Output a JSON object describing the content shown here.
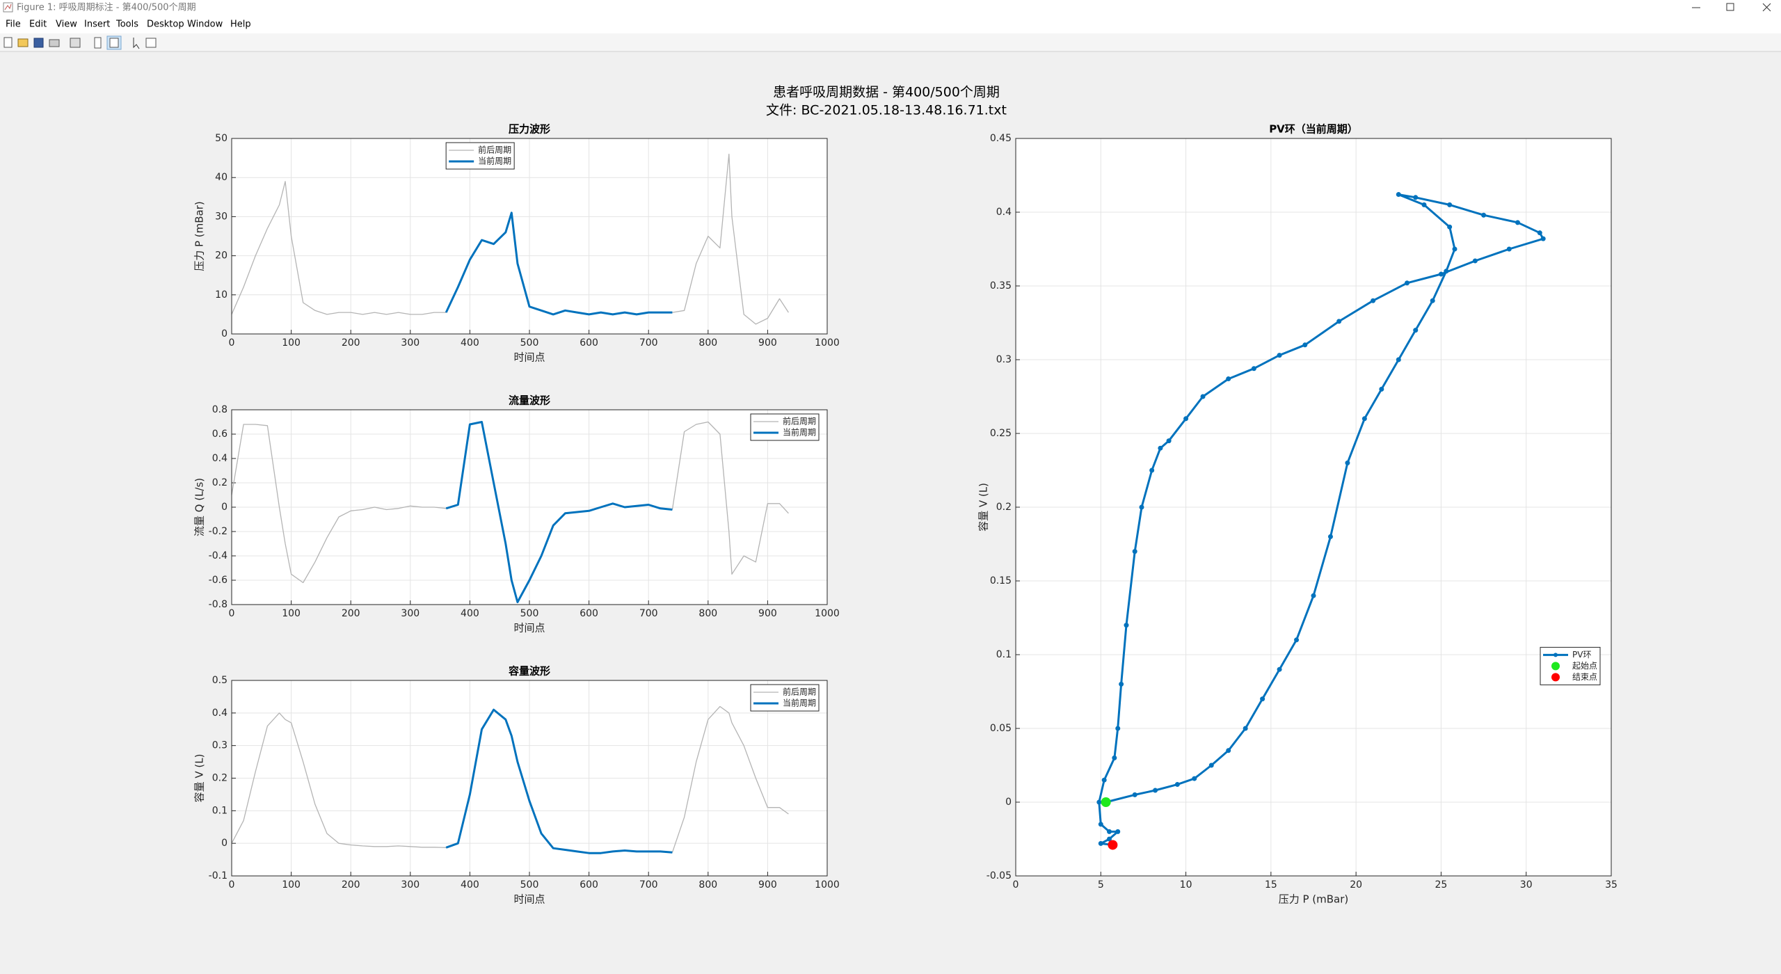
{
  "window": {
    "title": "Figure 1: 呼吸周期标注 - 第400/500个周期",
    "menu": [
      "File",
      "Edit",
      "View",
      "Insert",
      "Tools",
      "Desktop",
      "Window",
      "Help"
    ]
  },
  "figure_title": [
    "患者呼吸周期数据 - 第400/500个周期",
    "文件: BC-2021.05.18-13.48.16.71.txt"
  ],
  "chart_data": [
    {
      "type": "line",
      "title": "压力波形",
      "xlabel": "时间点",
      "ylabel": "压力 P (mBar)",
      "x": [
        0,
        20,
        40,
        60,
        80,
        90,
        100,
        120,
        140,
        160,
        180,
        200,
        220,
        240,
        260,
        280,
        300,
        320,
        340,
        360,
        380,
        400,
        420,
        440,
        460,
        470,
        480,
        500,
        520,
        540,
        560,
        580,
        600,
        620,
        640,
        660,
        680,
        700,
        720,
        740,
        760,
        780,
        800,
        820,
        835,
        840,
        860,
        880,
        900,
        920,
        935
      ],
      "series": [
        {
          "name": "前后周期",
          "color": "#b4b4b4",
          "linewidth": "thin",
          "values": [
            5,
            12,
            20,
            27,
            33,
            39,
            25,
            8,
            6,
            5,
            5.5,
            5.5,
            5,
            5.5,
            5,
            5.5,
            5,
            5,
            5.5,
            5.5,
            null,
            null,
            null,
            null,
            null,
            null,
            null,
            null,
            null,
            null,
            null,
            null,
            null,
            null,
            null,
            null,
            null,
            null,
            null,
            5.5,
            6,
            18,
            25,
            22,
            46,
            30,
            5,
            2.5,
            4,
            9,
            5.5
          ]
        },
        {
          "name": "当前周期",
          "color": "#0072bd",
          "linewidth": "thick",
          "values": [
            null,
            null,
            null,
            null,
            null,
            null,
            null,
            null,
            null,
            null,
            null,
            null,
            null,
            null,
            null,
            null,
            null,
            null,
            null,
            5.5,
            12,
            19,
            24,
            23,
            26,
            31,
            18,
            7,
            6,
            5,
            6,
            5.5,
            5,
            5.5,
            5,
            5.5,
            5,
            5.5,
            5.5,
            5.5,
            null,
            null,
            null,
            null,
            null,
            null,
            null,
            null,
            null,
            null,
            null
          ]
        }
      ],
      "xlim": [
        0,
        1000
      ],
      "xticks": [
        0,
        100,
        200,
        300,
        400,
        500,
        600,
        700,
        800,
        900,
        1000
      ],
      "ylim": [
        0,
        50
      ],
      "yticks": [
        0,
        10,
        20,
        30,
        40,
        50
      ],
      "grid": true,
      "legend": "upper center"
    },
    {
      "type": "line",
      "title": "流量波形",
      "xlabel": "时间点",
      "ylabel": "流量 Q (L/s)",
      "x": [
        0,
        20,
        40,
        60,
        80,
        90,
        100,
        120,
        140,
        160,
        180,
        200,
        220,
        240,
        260,
        280,
        300,
        320,
        340,
        360,
        380,
        400,
        420,
        440,
        460,
        470,
        480,
        500,
        520,
        540,
        560,
        580,
        600,
        620,
        640,
        660,
        680,
        700,
        720,
        740,
        760,
        780,
        800,
        820,
        835,
        840,
        860,
        880,
        900,
        920,
        935
      ],
      "series": [
        {
          "name": "前后周期",
          "color": "#b4b4b4",
          "linewidth": "thin",
          "values": [
            0.1,
            0.68,
            0.68,
            0.67,
            0,
            -0.3,
            -0.55,
            -0.62,
            -0.45,
            -0.25,
            -0.08,
            -0.03,
            -0.02,
            0,
            -0.02,
            -0.01,
            0.01,
            0,
            0,
            -0.01,
            null,
            null,
            null,
            null,
            null,
            null,
            null,
            null,
            null,
            null,
            null,
            null,
            null,
            null,
            null,
            null,
            null,
            null,
            null,
            -0.02,
            0.62,
            0.68,
            0.7,
            0.6,
            -0.2,
            -0.55,
            -0.4,
            -0.45,
            0.03,
            0.03,
            -0.05
          ]
        },
        {
          "name": "当前周期",
          "color": "#0072bd",
          "linewidth": "thick",
          "values": [
            null,
            null,
            null,
            null,
            null,
            null,
            null,
            null,
            null,
            null,
            null,
            null,
            null,
            null,
            null,
            null,
            null,
            null,
            null,
            -0.01,
            0.02,
            0.68,
            0.7,
            0.2,
            -0.3,
            -0.6,
            -0.78,
            -0.6,
            -0.4,
            -0.15,
            -0.05,
            -0.04,
            -0.03,
            0,
            0.03,
            0,
            0.01,
            0.02,
            -0.01,
            -0.02,
            null,
            null,
            null,
            null,
            null,
            null,
            null,
            null,
            null,
            null,
            null
          ]
        }
      ],
      "xlim": [
        0,
        1000
      ],
      "xticks": [
        0,
        100,
        200,
        300,
        400,
        500,
        600,
        700,
        800,
        900,
        1000
      ],
      "ylim": [
        -0.8,
        0.8
      ],
      "yticks": [
        -0.8,
        -0.6,
        -0.4,
        -0.2,
        0,
        0.2,
        0.4,
        0.6,
        0.8
      ],
      "grid": true,
      "legend": "upper right"
    },
    {
      "type": "line",
      "title": "容量波形",
      "xlabel": "时间点",
      "ylabel": "容量 V (L)",
      "x": [
        0,
        20,
        40,
        60,
        80,
        90,
        100,
        120,
        140,
        160,
        180,
        200,
        220,
        240,
        260,
        280,
        300,
        320,
        340,
        360,
        380,
        400,
        420,
        440,
        460,
        470,
        480,
        500,
        520,
        540,
        560,
        580,
        600,
        620,
        640,
        660,
        680,
        700,
        720,
        740,
        760,
        780,
        800,
        820,
        835,
        840,
        860,
        880,
        900,
        920,
        935
      ],
      "series": [
        {
          "name": "前后周期",
          "color": "#b4b4b4",
          "linewidth": "thin",
          "values": [
            0,
            0.07,
            0.22,
            0.36,
            0.4,
            0.38,
            0.37,
            0.25,
            0.12,
            0.03,
            0,
            -0.005,
            -0.008,
            -0.01,
            -0.01,
            -0.008,
            -0.01,
            -0.012,
            -0.012,
            -0.013,
            null,
            null,
            null,
            null,
            null,
            null,
            null,
            null,
            null,
            null,
            null,
            null,
            null,
            null,
            null,
            null,
            null,
            null,
            null,
            -0.028,
            0.08,
            0.25,
            0.38,
            0.42,
            0.4,
            0.37,
            0.3,
            0.2,
            0.11,
            0.11,
            0.09
          ]
        },
        {
          "name": "当前周期",
          "color": "#0072bd",
          "linewidth": "thick",
          "values": [
            null,
            null,
            null,
            null,
            null,
            null,
            null,
            null,
            null,
            null,
            null,
            null,
            null,
            null,
            null,
            null,
            null,
            null,
            null,
            -0.013,
            0,
            0.15,
            0.35,
            0.41,
            0.38,
            0.33,
            0.25,
            0.13,
            0.03,
            -0.015,
            -0.02,
            -0.025,
            -0.03,
            -0.03,
            -0.025,
            -0.022,
            -0.025,
            -0.025,
            -0.025,
            -0.028,
            null,
            null,
            null,
            null,
            null,
            null,
            null,
            null,
            null,
            null,
            null
          ]
        }
      ],
      "xlim": [
        0,
        1000
      ],
      "xticks": [
        0,
        100,
        200,
        300,
        400,
        500,
        600,
        700,
        800,
        900,
        1000
      ],
      "ylim": [
        -0.1,
        0.5
      ],
      "yticks": [
        -0.1,
        0,
        0.1,
        0.2,
        0.3,
        0.4,
        0.5
      ],
      "grid": true,
      "legend": "upper right"
    },
    {
      "type": "line",
      "title": "PV环（当前周期）",
      "xlabel": "压力 P (mBar)",
      "ylabel": "容量 V (L)",
      "series": [
        {
          "name": "PV环",
          "color": "#0072bd",
          "linewidth": "thick",
          "marker": true,
          "x": [
            5.3,
            7,
            8.2,
            9.5,
            10.5,
            11.5,
            12.5,
            13.5,
            14.5,
            15.5,
            16.5,
            17.5,
            18.5,
            19.5,
            20.5,
            21.5,
            22.5,
            23.5,
            24.5,
            25.3,
            25.8,
            25.5,
            24,
            22.5,
            23.5,
            25.5,
            27.5,
            29.5,
            30.8,
            31,
            29,
            27,
            25,
            23,
            21,
            19,
            17,
            15.5,
            14,
            12.5,
            11,
            10,
            9,
            8.5,
            8,
            7.4,
            7,
            6.5,
            6.2,
            6,
            5.8,
            5.2,
            4.9,
            5,
            5.5,
            6,
            5.5,
            5,
            5.7
          ],
          "values": [
            0,
            0.005,
            0.008,
            0.012,
            0.016,
            0.025,
            0.035,
            0.05,
            0.07,
            0.09,
            0.11,
            0.14,
            0.18,
            0.23,
            0.26,
            0.28,
            0.3,
            0.32,
            0.34,
            0.36,
            0.375,
            0.39,
            0.405,
            0.412,
            0.41,
            0.405,
            0.398,
            0.393,
            0.386,
            0.382,
            0.375,
            0.367,
            0.358,
            0.352,
            0.34,
            0.326,
            0.31,
            0.303,
            0.294,
            0.287,
            0.275,
            0.26,
            0.245,
            0.24,
            0.225,
            0.2,
            0.17,
            0.12,
            0.08,
            0.05,
            0.03,
            0.015,
            0,
            -0.015,
            -0.02,
            -0.02,
            -0.025,
            -0.028,
            -0.029
          ]
        },
        {
          "name": "起始点",
          "color": "#1ee81e",
          "line": false,
          "marker": true,
          "x": [
            5.3
          ],
          "values": [
            0
          ]
        },
        {
          "name": "结束点",
          "color": "#ff0000",
          "line": false,
          "marker": true,
          "x": [
            5.7
          ],
          "values": [
            -0.029
          ]
        }
      ],
      "xlim": [
        0,
        35
      ],
      "xticks": [
        0,
        5,
        10,
        15,
        20,
        25,
        30,
        35
      ],
      "ylim": [
        -0.05,
        0.45
      ],
      "yticks": [
        -0.05,
        0,
        0.05,
        0.1,
        0.15,
        0.2,
        0.25,
        0.3,
        0.35,
        0.4,
        0.45
      ],
      "grid": true,
      "legend": "center right"
    }
  ]
}
